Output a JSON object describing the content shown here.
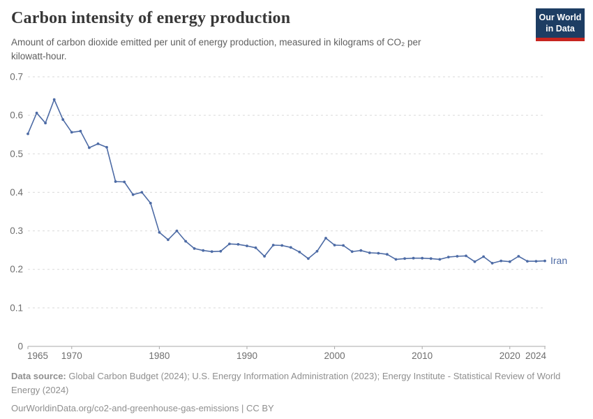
{
  "header": {
    "title": "Carbon intensity of energy production",
    "subtitle_line1": "Amount of carbon dioxide emitted per unit of energy production, measured in kilograms of CO₂ per",
    "subtitle_line2": "kilowatt-hour.",
    "logo": {
      "line1": "Our World",
      "line2": "in Data"
    }
  },
  "colors": {
    "series_blue": "#4d6ba5",
    "gridline": "#d9d9d9",
    "axis": "#a8a8a8",
    "tick_label": "#6e6e6e",
    "logo_bg": "#1d3d63",
    "logo_accent": "#c7251f",
    "title_text": "#373737",
    "subtitle_text": "#5e5e5e",
    "footer_text": "#8f8f8f"
  },
  "chart_data": {
    "type": "line",
    "title": "Carbon intensity of energy production",
    "unit": "kilograms of CO₂ per kilowatt-hour",
    "xlim": [
      1965,
      2024
    ],
    "ylim": [
      0,
      0.7
    ],
    "yticks": [
      0,
      0.1,
      0.2,
      0.3,
      0.4,
      0.5,
      0.6,
      0.7
    ],
    "xticks": [
      1965,
      1970,
      1980,
      1990,
      2000,
      2010,
      2020,
      2024
    ],
    "grid": "horizontal-dashed",
    "legend_position": "end-of-line-label",
    "series": [
      {
        "name": "Iran",
        "x": [
          1965,
          1966,
          1967,
          1968,
          1969,
          1970,
          1971,
          1972,
          1973,
          1974,
          1975,
          1976,
          1977,
          1978,
          1979,
          1980,
          1981,
          1982,
          1983,
          1984,
          1985,
          1986,
          1987,
          1988,
          1989,
          1990,
          1991,
          1992,
          1993,
          1994,
          1995,
          1996,
          1997,
          1998,
          1999,
          2000,
          2001,
          2002,
          2003,
          2004,
          2005,
          2006,
          2007,
          2008,
          2009,
          2010,
          2011,
          2012,
          2013,
          2014,
          2015,
          2016,
          2017,
          2018,
          2019,
          2020,
          2021,
          2022,
          2023,
          2024
        ],
        "values": [
          0.552,
          0.606,
          0.58,
          0.641,
          0.589,
          0.556,
          0.559,
          0.516,
          0.526,
          0.517,
          0.428,
          0.427,
          0.394,
          0.4,
          0.372,
          0.296,
          0.277,
          0.3,
          0.273,
          0.254,
          0.249,
          0.246,
          0.247,
          0.266,
          0.265,
          0.261,
          0.256,
          0.234,
          0.263,
          0.262,
          0.257,
          0.245,
          0.228,
          0.247,
          0.281,
          0.263,
          0.262,
          0.246,
          0.249,
          0.243,
          0.242,
          0.239,
          0.226,
          0.228,
          0.229,
          0.229,
          0.228,
          0.226,
          0.232,
          0.234,
          0.235,
          0.22,
          0.233,
          0.216,
          0.222,
          0.22,
          0.234,
          0.221,
          0.221,
          0.222
        ]
      }
    ]
  },
  "footer": {
    "source_label": "Data source:",
    "source_text": " Global Carbon Budget (2024); U.S. Energy Information Administration (2023); Energy Institute - Statistical Review of World Energy (2024)",
    "note_text": "OurWorldinData.org/co2-and-greenhouse-gas-emissions | CC BY"
  }
}
